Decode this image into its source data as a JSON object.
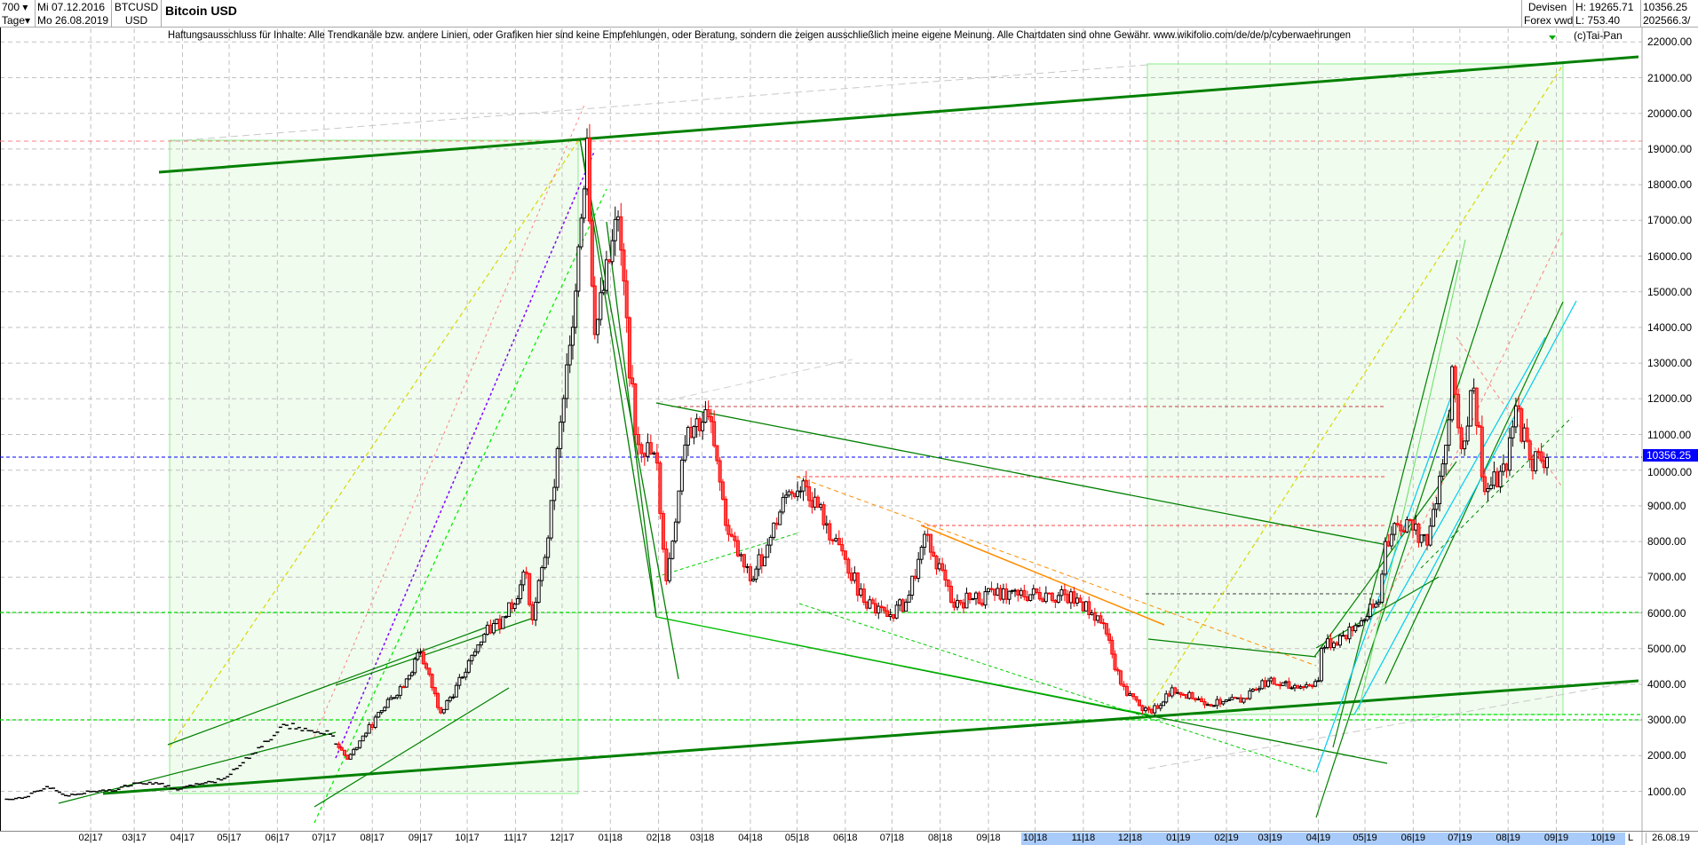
{
  "header": {
    "bars": "700",
    "bars_unit": "Tage",
    "date_from": "Mi 07.12.2016",
    "date_to": "Mo 26.08.2019",
    "symbol": "BTCUSD",
    "currency": "USD",
    "title": "Bitcoin USD",
    "market": "Devisen",
    "source": "Forex vwd",
    "high": "H: 19265.71",
    "low": "L: 753.40",
    "last": "10356.25",
    "volume": "202566.3/"
  },
  "disclaimer": "Haftungsausschluss für Inhalte: Alle Trendkanäle bzw. andere Linien, oder Grafiken hier sind keine Empfehlungen, oder Beratung, sondern die zeigen ausschließlich meine eigene Meinung. Alle Chartdaten sind ohne Gewähr.  www.wikifolio.com/de/de/p/cyberwaehrungen",
  "copyright": "(c)Tai-Pan",
  "chart_data": {
    "type": "candlestick",
    "title": "Bitcoin USD",
    "ylim": [
      0,
      22000
    ],
    "y_ticks": [
      "1000.00",
      "2000.00",
      "3000.00",
      "4000.00",
      "5000.00",
      "6000.00",
      "7000.00",
      "8000.00",
      "9000.00",
      "10000.00",
      "11000.00",
      "12000.00",
      "13000.00",
      "14000.00",
      "15000.00",
      "16000.00",
      "17000.00",
      "18000.00",
      "19000.00",
      "20000.00",
      "21000.00",
      "22000.00"
    ],
    "x_ticks": [
      "02.17",
      "03.17",
      "04.17",
      "05.17",
      "06.17",
      "07.17",
      "08.17",
      "09.17",
      "10.17",
      "11.17",
      "12.17",
      "01.18",
      "02.18",
      "03.18",
      "04.18",
      "05.18",
      "06.18",
      "07.18",
      "08.18",
      "09.18",
      "10.18",
      "11.18",
      "12.18",
      "01.19",
      "02.19",
      "03.19",
      "04.19",
      "05.19",
      "06.19",
      "07.19",
      "08.19",
      "09.19",
      "10.19"
    ],
    "x_end_marker": "L",
    "x_end_label": "26.08.19",
    "last_price": "10356.25",
    "grid": true,
    "colors": {
      "up": "#000000",
      "down": "#ff0000",
      "trend": "#008000",
      "last": "#0000ff"
    },
    "closes": [
      [
        "2016-12-07",
        770
      ],
      [
        "2016-12-21",
        830
      ],
      [
        "2017-01-04",
        1130
      ],
      [
        "2017-01-18",
        870
      ],
      [
        "2017-02-01",
        990
      ],
      [
        "2017-02-15",
        1010
      ],
      [
        "2017-03-01",
        1230
      ],
      [
        "2017-03-15",
        1240
      ],
      [
        "2017-03-29",
        1040
      ],
      [
        "2017-04-12",
        1200
      ],
      [
        "2017-04-26",
        1320
      ],
      [
        "2017-05-10",
        1800
      ],
      [
        "2017-05-24",
        2400
      ],
      [
        "2017-06-07",
        2850
      ],
      [
        "2017-06-21",
        2700
      ],
      [
        "2017-07-05",
        2600
      ],
      [
        "2017-07-16",
        1900
      ],
      [
        "2017-07-26",
        2550
      ],
      [
        "2017-08-09",
        3350
      ],
      [
        "2017-08-23",
        4150
      ],
      [
        "2017-09-01",
        4900
      ],
      [
        "2017-09-14",
        3200
      ],
      [
        "2017-09-28",
        4200
      ],
      [
        "2017-10-12",
        5400
      ],
      [
        "2017-10-26",
        5900
      ],
      [
        "2017-11-08",
        7100
      ],
      [
        "2017-11-12",
        5800
      ],
      [
        "2017-11-22",
        8100
      ],
      [
        "2017-12-06",
        13500
      ],
      [
        "2017-12-17",
        19300
      ],
      [
        "2017-12-22",
        13800
      ],
      [
        "2018-01-06",
        17100
      ],
      [
        "2018-01-17",
        11000
      ],
      [
        "2018-01-31",
        10200
      ],
      [
        "2018-02-06",
        6900
      ],
      [
        "2018-02-20",
        11200
      ],
      [
        "2018-03-05",
        11500
      ],
      [
        "2018-03-18",
        8200
      ],
      [
        "2018-04-01",
        6900
      ],
      [
        "2018-04-12",
        7900
      ],
      [
        "2018-04-24",
        9300
      ],
      [
        "2018-05-05",
        9700
      ],
      [
        "2018-05-20",
        8500
      ],
      [
        "2018-06-01",
        7500
      ],
      [
        "2018-06-13",
        6300
      ],
      [
        "2018-06-28",
        5900
      ],
      [
        "2018-07-10",
        6300
      ],
      [
        "2018-07-24",
        8200
      ],
      [
        "2018-08-08",
        6300
      ],
      [
        "2018-08-22",
        6400
      ],
      [
        "2018-09-05",
        6500
      ],
      [
        "2018-09-20",
        6500
      ],
      [
        "2018-10-10",
        6550
      ],
      [
        "2018-10-30",
        6300
      ],
      [
        "2018-11-14",
        5700
      ],
      [
        "2018-11-25",
        4000
      ],
      [
        "2018-12-07",
        3400
      ],
      [
        "2018-12-15",
        3200
      ],
      [
        "2018-12-28",
        3900
      ],
      [
        "2019-01-10",
        3600
      ],
      [
        "2019-01-28",
        3450
      ],
      [
        "2019-02-14",
        3600
      ],
      [
        "2019-02-24",
        4100
      ],
      [
        "2019-03-15",
        3900
      ],
      [
        "2019-04-01",
        4100
      ],
      [
        "2019-04-03",
        5000
      ],
      [
        "2019-04-23",
        5500
      ],
      [
        "2019-05-10",
        6300
      ],
      [
        "2019-05-14",
        8000
      ],
      [
        "2019-05-30",
        8600
      ],
      [
        "2019-06-10",
        7900
      ],
      [
        "2019-06-22",
        10700
      ],
      [
        "2019-06-26",
        12900
      ],
      [
        "2019-07-02",
        10600
      ],
      [
        "2019-07-10",
        12300
      ],
      [
        "2019-07-17",
        9400
      ],
      [
        "2019-07-31",
        10000
      ],
      [
        "2019-08-06",
        11800
      ],
      [
        "2019-08-15",
        10300
      ],
      [
        "2019-08-26",
        10356.25
      ]
    ]
  }
}
